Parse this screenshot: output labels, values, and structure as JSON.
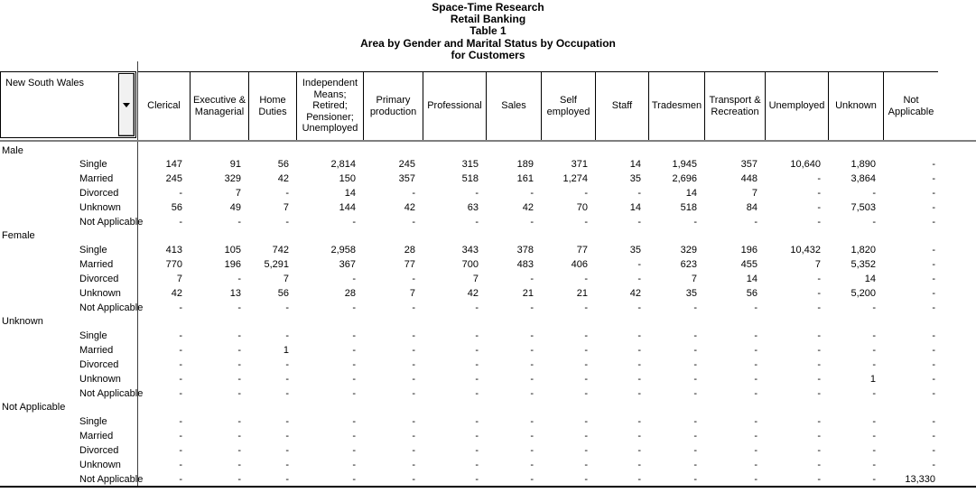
{
  "titles": [
    "Space-Time Research",
    "Retail Banking",
    "Table 1",
    "Area by Gender and Marital Status by Occupation",
    "for Customers"
  ],
  "area": {
    "label": "New South Wales",
    "dropdown_icon": "chevron-down-icon"
  },
  "columns": [
    "Clerical",
    "Executive & Managerial",
    "Home Duties",
    "Independent Means; Retired; Pensioner; Unemployed",
    "Primary production",
    "Professional",
    "Sales",
    "Self employed",
    "Staff",
    "Tradesmen",
    "Transport & Recreation",
    "Unemployed",
    "Unknown",
    "Not Applicable"
  ],
  "rows": [
    {
      "label": "Male",
      "level": "group",
      "values": [
        "",
        "",
        "",
        "",
        "",
        "",
        "",
        "",
        "",
        "",
        "",
        "",
        "",
        ""
      ]
    },
    {
      "label": "Single",
      "level": "child",
      "values": [
        "147",
        "91",
        "56",
        "2,814",
        "245",
        "315",
        "189",
        "371",
        "14",
        "1,945",
        "357",
        "10,640",
        "1,890",
        "-"
      ]
    },
    {
      "label": "Married",
      "level": "child",
      "values": [
        "245",
        "329",
        "42",
        "150",
        "357",
        "518",
        "161",
        "1,274",
        "35",
        "2,696",
        "448",
        "-",
        "3,864",
        "-"
      ]
    },
    {
      "label": "Divorced",
      "level": "child",
      "values": [
        "-",
        "7",
        "-",
        "14",
        "-",
        "-",
        "-",
        "-",
        "-",
        "14",
        "7",
        "-",
        "-",
        "-"
      ]
    },
    {
      "label": "Unknown",
      "level": "child",
      "values": [
        "56",
        "49",
        "7",
        "144",
        "42",
        "63",
        "42",
        "70",
        "14",
        "518",
        "84",
        "-",
        "7,503",
        "-"
      ]
    },
    {
      "label": "Not Applicable",
      "level": "child",
      "values": [
        "-",
        "-",
        "-",
        "-",
        "-",
        "-",
        "-",
        "-",
        "-",
        "-",
        "-",
        "-",
        "-",
        "-"
      ]
    },
    {
      "label": "Female",
      "level": "group",
      "values": [
        "",
        "",
        "",
        "",
        "",
        "",
        "",
        "",
        "",
        "",
        "",
        "",
        "",
        ""
      ]
    },
    {
      "label": "Single",
      "level": "child",
      "values": [
        "413",
        "105",
        "742",
        "2,958",
        "28",
        "343",
        "378",
        "77",
        "35",
        "329",
        "196",
        "10,432",
        "1,820",
        "-"
      ]
    },
    {
      "label": "Married",
      "level": "child",
      "values": [
        "770",
        "196",
        "5,291",
        "367",
        "77",
        "700",
        "483",
        "406",
        "-",
        "623",
        "455",
        "7",
        "5,352",
        "-"
      ]
    },
    {
      "label": "Divorced",
      "level": "child",
      "values": [
        "7",
        "-",
        "7",
        "-",
        "-",
        "7",
        "-",
        "-",
        "-",
        "7",
        "14",
        "-",
        "14",
        "-"
      ]
    },
    {
      "label": "Unknown",
      "level": "child",
      "values": [
        "42",
        "13",
        "56",
        "28",
        "7",
        "42",
        "21",
        "21",
        "42",
        "35",
        "56",
        "-",
        "5,200",
        "-"
      ]
    },
    {
      "label": "Not Applicable",
      "level": "child",
      "values": [
        "-",
        "-",
        "-",
        "-",
        "-",
        "-",
        "-",
        "-",
        "-",
        "-",
        "-",
        "-",
        "-",
        "-"
      ]
    },
    {
      "label": "Unknown",
      "level": "group",
      "values": [
        "",
        "",
        "",
        "",
        "",
        "",
        "",
        "",
        "",
        "",
        "",
        "",
        "",
        ""
      ]
    },
    {
      "label": "Single",
      "level": "child",
      "values": [
        "-",
        "-",
        "-",
        "-",
        "-",
        "-",
        "-",
        "-",
        "-",
        "-",
        "-",
        "-",
        "-",
        "-"
      ]
    },
    {
      "label": "Married",
      "level": "child",
      "values": [
        "-",
        "-",
        "1",
        "-",
        "-",
        "-",
        "-",
        "-",
        "-",
        "-",
        "-",
        "-",
        "-",
        "-"
      ]
    },
    {
      "label": "Divorced",
      "level": "child",
      "values": [
        "-",
        "-",
        "-",
        "-",
        "-",
        "-",
        "-",
        "-",
        "-",
        "-",
        "-",
        "-",
        "-",
        "-"
      ]
    },
    {
      "label": "Unknown",
      "level": "child",
      "values": [
        "-",
        "-",
        "-",
        "-",
        "-",
        "-",
        "-",
        "-",
        "-",
        "-",
        "-",
        "-",
        "1",
        "-"
      ]
    },
    {
      "label": "Not Applicable",
      "level": "child",
      "values": [
        "-",
        "-",
        "-",
        "-",
        "-",
        "-",
        "-",
        "-",
        "-",
        "-",
        "-",
        "-",
        "-",
        "-"
      ]
    },
    {
      "label": "Not Applicable",
      "level": "group",
      "values": [
        "",
        "",
        "",
        "",
        "",
        "",
        "",
        "",
        "",
        "",
        "",
        "",
        "",
        ""
      ]
    },
    {
      "label": "Single",
      "level": "child",
      "values": [
        "-",
        "-",
        "-",
        "-",
        "-",
        "-",
        "-",
        "-",
        "-",
        "-",
        "-",
        "-",
        "-",
        "-"
      ]
    },
    {
      "label": "Married",
      "level": "child",
      "values": [
        "-",
        "-",
        "-",
        "-",
        "-",
        "-",
        "-",
        "-",
        "-",
        "-",
        "-",
        "-",
        "-",
        "-"
      ]
    },
    {
      "label": "Divorced",
      "level": "child",
      "values": [
        "-",
        "-",
        "-",
        "-",
        "-",
        "-",
        "-",
        "-",
        "-",
        "-",
        "-",
        "-",
        "-",
        "-"
      ]
    },
    {
      "label": "Unknown",
      "level": "child",
      "values": [
        "-",
        "-",
        "-",
        "-",
        "-",
        "-",
        "-",
        "-",
        "-",
        "-",
        "-",
        "-",
        "-",
        "-"
      ]
    },
    {
      "label": "Not Applicable",
      "level": "child",
      "values": [
        "-",
        "-",
        "-",
        "-",
        "-",
        "-",
        "-",
        "-",
        "-",
        "-",
        "-",
        "-",
        "-",
        "13,330"
      ]
    }
  ],
  "colors": {
    "text": "#000000",
    "grid": "#000000",
    "header_divider": "#7f7f7f",
    "button_face": "#f1f1f1"
  }
}
